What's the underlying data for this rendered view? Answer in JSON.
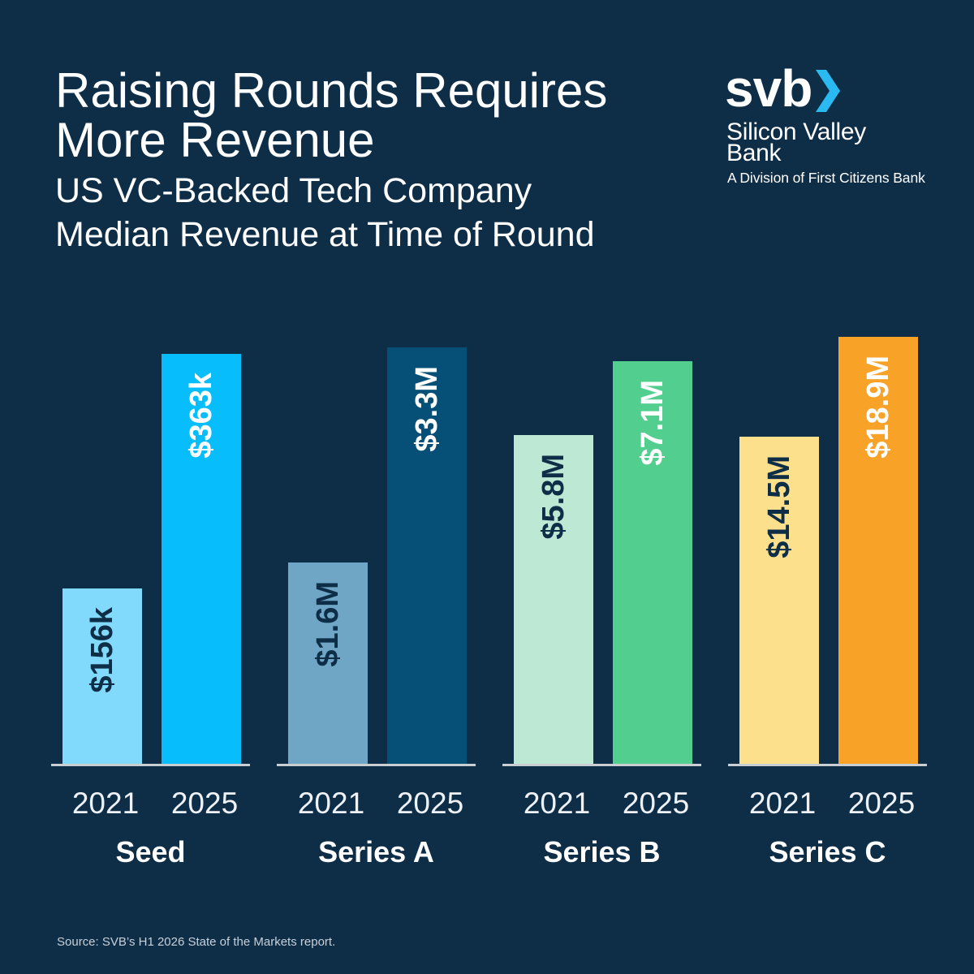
{
  "chart_data": {
    "type": "bar",
    "title": "Raising Rounds Requires More Revenue",
    "subtitle": "US VC-Backed Tech Company Median Revenue at Time of Round",
    "categories": [
      "Seed",
      "Series A",
      "Series B",
      "Series C"
    ],
    "series": [
      {
        "name": "2021",
        "values": [
          156000,
          1600000,
          5800000,
          14500000
        ],
        "labels": [
          "$156k",
          "$1.6M",
          "$5.8M",
          "$14.5M"
        ],
        "colors": [
          "#81d9fb",
          "#6fa6c6",
          "#bde8d3",
          "#fde08b"
        ],
        "label_color": "#0e2d47"
      },
      {
        "name": "2025",
        "values": [
          363000,
          3300000,
          7100000,
          18900000
        ],
        "labels": [
          "$363k",
          "$3.3M",
          "$7.1M",
          "$18.9M"
        ],
        "colors": [
          "#07bdfb",
          "#064f76",
          "#52cf8e",
          "#f9a228"
        ],
        "label_color": "#ffffff"
      }
    ],
    "grid": false,
    "legend": "none",
    "value_axis": "hidden",
    "source": "Source: SVB’s H1 2026 State of the Markets report."
  },
  "logo": {
    "wordmark": "svb",
    "name": "Silicon Valley Bank",
    "tagline": "A Division of First Citizens Bank",
    "icon": "chevron-right-icon",
    "accent": "#2bb9f1"
  },
  "colors": {
    "background": "#0e2d47",
    "text": "#ffffff",
    "baseline": "#c9ced3"
  }
}
